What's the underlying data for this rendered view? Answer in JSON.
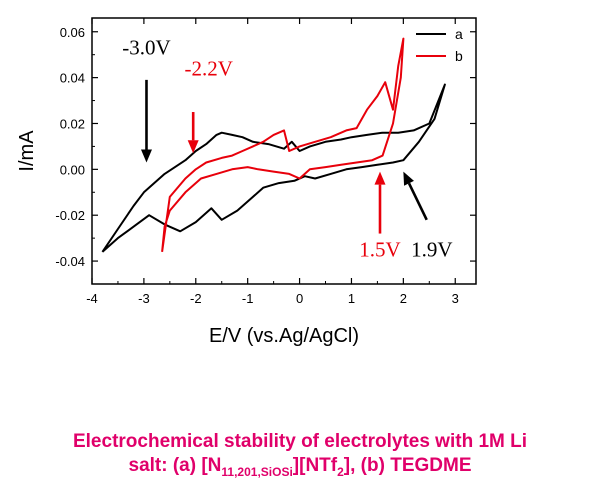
{
  "chart_data": {
    "type": "line",
    "xlabel": "E/V (vs.Ag/AgCl)",
    "ylabel": "I/mA",
    "xlim": [
      -4.0,
      3.4
    ],
    "ylim": [
      -0.05,
      0.066
    ],
    "xticks": [
      -4,
      -3,
      -2,
      -1,
      0,
      1,
      2,
      3
    ],
    "yticks": [
      -0.04,
      -0.02,
      0.0,
      0.02,
      0.04,
      0.06
    ],
    "ytick_labels": [
      "-0.04",
      "-0.02",
      "0.00",
      "0.02",
      "0.04",
      "0.06"
    ],
    "legend_position": "top-right",
    "series": [
      {
        "name": "a",
        "color": "#000000",
        "x": [
          -3.8,
          -3.5,
          -3.2,
          -3.0,
          -2.6,
          -2.2,
          -2.0,
          -1.8,
          -1.6,
          -1.5,
          -1.3,
          -1.1,
          -0.9,
          -0.6,
          -0.3,
          -0.15,
          0.0,
          0.2,
          0.5,
          0.8,
          1.0,
          1.3,
          1.6,
          1.9,
          2.2,
          2.5,
          2.8,
          2.6,
          2.3,
          2.0,
          1.8,
          1.5,
          1.2,
          0.9,
          0.6,
          0.3,
          0.1,
          -0.1,
          -0.4,
          -0.7,
          -0.9,
          -1.2,
          -1.5,
          -1.7,
          -2.0,
          -2.3,
          -2.6,
          -2.9,
          -3.2,
          -3.5,
          -3.8
        ],
        "y": [
          -0.036,
          -0.026,
          -0.016,
          -0.01,
          -0.002,
          0.004,
          0.008,
          0.011,
          0.015,
          0.016,
          0.015,
          0.014,
          0.012,
          0.011,
          0.009,
          0.012,
          0.008,
          0.01,
          0.012,
          0.013,
          0.014,
          0.015,
          0.016,
          0.016,
          0.017,
          0.02,
          0.037,
          0.022,
          0.012,
          0.004,
          0.003,
          0.002,
          0.001,
          0.0,
          -0.002,
          -0.004,
          -0.003,
          -0.005,
          -0.006,
          -0.008,
          -0.012,
          -0.018,
          -0.022,
          -0.017,
          -0.023,
          -0.027,
          -0.024,
          -0.02,
          -0.025,
          -0.03,
          -0.036
        ]
      },
      {
        "name": "b",
        "color": "#e8000b",
        "x": [
          -2.65,
          -2.5,
          -2.2,
          -2.0,
          -1.8,
          -1.5,
          -1.3,
          -1.1,
          -0.9,
          -0.7,
          -0.5,
          -0.3,
          -0.2,
          0.0,
          0.3,
          0.6,
          0.9,
          1.1,
          1.3,
          1.5,
          1.65,
          1.8,
          1.9,
          2.0,
          1.95,
          1.8,
          1.6,
          1.4,
          1.1,
          0.8,
          0.5,
          0.2,
          0.0,
          -0.2,
          -0.5,
          -0.8,
          -1.0,
          -1.3,
          -1.6,
          -1.9,
          -2.2,
          -2.5,
          -2.6,
          -2.65
        ],
        "y": [
          -0.036,
          -0.012,
          -0.004,
          0.0,
          0.003,
          0.005,
          0.006,
          0.008,
          0.01,
          0.012,
          0.015,
          0.017,
          0.008,
          0.01,
          0.012,
          0.014,
          0.017,
          0.018,
          0.026,
          0.032,
          0.038,
          0.026,
          0.045,
          0.057,
          0.04,
          0.02,
          0.006,
          0.004,
          0.003,
          0.002,
          0.001,
          0.0,
          -0.004,
          -0.002,
          -0.001,
          0.0,
          0.001,
          0.0,
          -0.002,
          -0.004,
          -0.01,
          -0.018,
          -0.025,
          -0.036
        ]
      }
    ],
    "annotations": [
      {
        "text": "-3.0V",
        "color": "#000000",
        "x": -2.95,
        "y": 0.05
      },
      {
        "text": "-2.2V",
        "color": "#e8000b",
        "x": -1.75,
        "y": 0.041
      },
      {
        "text": "1.5V",
        "color": "#e8000b",
        "x": 1.55,
        "y": -0.038
      },
      {
        "text": "1.9V",
        "color": "#000000",
        "x": 2.55,
        "y": -0.038
      }
    ],
    "arrows": [
      {
        "color": "#000000",
        "x1": -2.95,
        "y1": 0.039,
        "x2": -2.95,
        "y2": 0.003
      },
      {
        "color": "#e8000b",
        "x1": -2.05,
        "y1": 0.025,
        "x2": -2.05,
        "y2": 0.007
      },
      {
        "color": "#e8000b",
        "x1": 1.55,
        "y1": -0.028,
        "x2": 1.55,
        "y2": -0.001
      },
      {
        "color": "#000000",
        "x1": 2.45,
        "y1": -0.022,
        "x2": 2.0,
        "y2": -0.001
      }
    ]
  },
  "caption": {
    "line1": "Electrochemical stability of electrolytes with 1M Li",
    "line2_pre": "salt: (a) [N",
    "line2_sub1": "11,201,SiOSi",
    "line2_mid": "][NTf",
    "line2_sub2": "2",
    "line2_post": "], (b) TEGDME"
  }
}
